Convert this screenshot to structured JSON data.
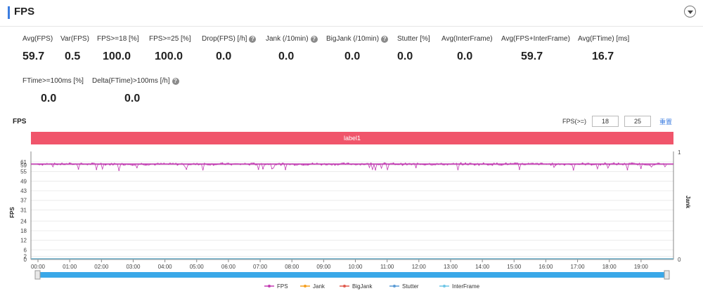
{
  "header": {
    "title": "FPS"
  },
  "metrics": [
    {
      "label": "Avg(FPS)",
      "value": "59.7",
      "help": false
    },
    {
      "label": "Var(FPS)",
      "value": "0.5",
      "help": false
    },
    {
      "label": "FPS>=18 [%]",
      "value": "100.0",
      "help": false
    },
    {
      "label": "FPS>=25 [%]",
      "value": "100.0",
      "help": false
    },
    {
      "label": "Drop(FPS) [/h]",
      "value": "0.0",
      "help": true
    },
    {
      "label": "Jank (/10min)",
      "value": "0.0",
      "help": true
    },
    {
      "label": "BigJank (/10min)",
      "value": "0.0",
      "help": true
    },
    {
      "label": "Stutter [%]",
      "value": "0.0",
      "help": false
    },
    {
      "label": "Avg(InterFrame)",
      "value": "0.0",
      "help": false
    },
    {
      "label": "Avg(FPS+InterFrame)",
      "value": "59.7",
      "help": false
    },
    {
      "label": "Avg(FTime) [ms]",
      "value": "16.7",
      "help": false
    },
    {
      "label": "FTime>=100ms [%]",
      "value": "0.0",
      "help": false
    },
    {
      "label": "Delta(FTime)>100ms [/h]",
      "value": "0.0",
      "help": true
    }
  ],
  "section_title": "FPS",
  "fps_threshold": {
    "label": "FPS(>=)",
    "low": "18",
    "high": "25",
    "reset_label": "重置"
  },
  "label_bar": "label1",
  "chart_data": {
    "type": "line",
    "ylabel": "FPS",
    "y2label": "Jank",
    "ylim": [
      0,
      61
    ],
    "y2lim": [
      0,
      1
    ],
    "yticks": [
      "0",
      "2",
      "6",
      "12",
      "18",
      "24",
      "31",
      "37",
      "43",
      "49",
      "55",
      "59",
      "61"
    ],
    "y2ticks": [
      "0",
      "1"
    ],
    "xlim": [
      "00:00",
      "19:48"
    ],
    "xticks": [
      "00:00",
      "01:00",
      "02:00",
      "03:00",
      "04:00",
      "05:00",
      "06:00",
      "07:00",
      "08:00",
      "09:00",
      "10:00",
      "11:00",
      "12:00",
      "13:00",
      "14:00",
      "15:00",
      "16:00",
      "17:00",
      "18:00",
      "19:00"
    ],
    "grid": true,
    "legend_position": "bottom",
    "series": [
      {
        "name": "FPS",
        "color": "#c23bb2",
        "baseline": 59.7,
        "min_dip": 55.6,
        "max": 61
      },
      {
        "name": "Jank",
        "color": "#f5a020",
        "values": [
          0
        ]
      },
      {
        "name": "BigJank",
        "color": "#e05a4e",
        "values": [
          0
        ]
      },
      {
        "name": "Stutter",
        "color": "#5b9bd5",
        "values": [
          0
        ]
      },
      {
        "name": "InterFrame",
        "color": "#6ec6e6",
        "values": [
          0
        ]
      }
    ]
  }
}
